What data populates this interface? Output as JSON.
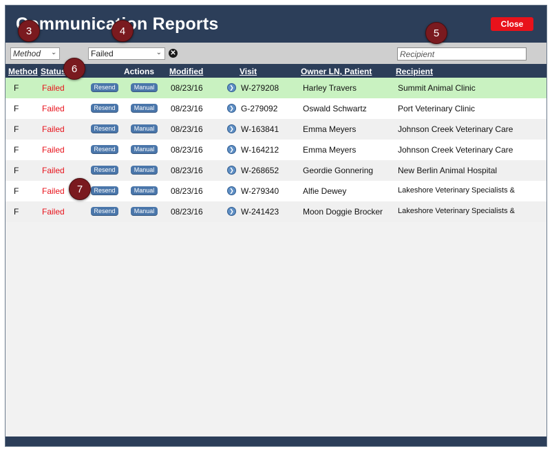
{
  "window": {
    "title": "Communication Reports",
    "close_label": "Close"
  },
  "filters": {
    "method_value": "Method",
    "status_value": "Failed",
    "recipient_placeholder": "Recipient"
  },
  "columns": {
    "method": "Method",
    "status": "Status",
    "actions": "Actions",
    "modified": "Modified",
    "visit": "Visit",
    "owner": "Owner LN, Patient",
    "recipient": "Recipient"
  },
  "actions": {
    "resend": "Resend",
    "manual": "Manual"
  },
  "rows": [
    {
      "method": "F",
      "status": "Failed",
      "modified": "08/23/16",
      "visit": "W-279208",
      "owner": "Harley Travers",
      "recipient": "Summit Animal Clinic"
    },
    {
      "method": "F",
      "status": "Failed",
      "modified": "08/23/16",
      "visit": "G-279092",
      "owner": "Oswald Schwartz",
      "recipient": "Port Veterinary Clinic"
    },
    {
      "method": "F",
      "status": "Failed",
      "modified": "08/23/16",
      "visit": "W-163841",
      "owner": "Emma Meyers",
      "recipient": "Johnson Creek Veterinary Care"
    },
    {
      "method": "F",
      "status": "Failed",
      "modified": "08/23/16",
      "visit": "W-164212",
      "owner": "Emma Meyers",
      "recipient": "Johnson Creek Veterinary Care"
    },
    {
      "method": "F",
      "status": "Failed",
      "modified": "08/23/16",
      "visit": "W-268652",
      "owner": "Geordie Gonnering",
      "recipient": "New Berlin Animal Hospital"
    },
    {
      "method": "F",
      "status": "Failed",
      "modified": "08/23/16",
      "visit": "W-279340",
      "owner": "Alfie Dewey",
      "recipient": "Lakeshore Veterinary Specialists &"
    },
    {
      "method": "F",
      "status": "Failed",
      "modified": "08/23/16",
      "visit": "W-241423",
      "owner": "Moon Doggie Brocker",
      "recipient": "Lakeshore Veterinary Specialists &"
    }
  ],
  "markers": [
    "3",
    "4",
    "5",
    "6",
    "7"
  ],
  "icons": {
    "chevron": "chevron-down-icon",
    "clear": "clear-filter-icon",
    "visit": "visit-arrow-icon"
  },
  "colors": {
    "header": "#2c3e59",
    "failed": "#e8121b",
    "selected_row": "#c9f2c1",
    "button": "#4a76aa",
    "marker": "#7a1a1f"
  }
}
